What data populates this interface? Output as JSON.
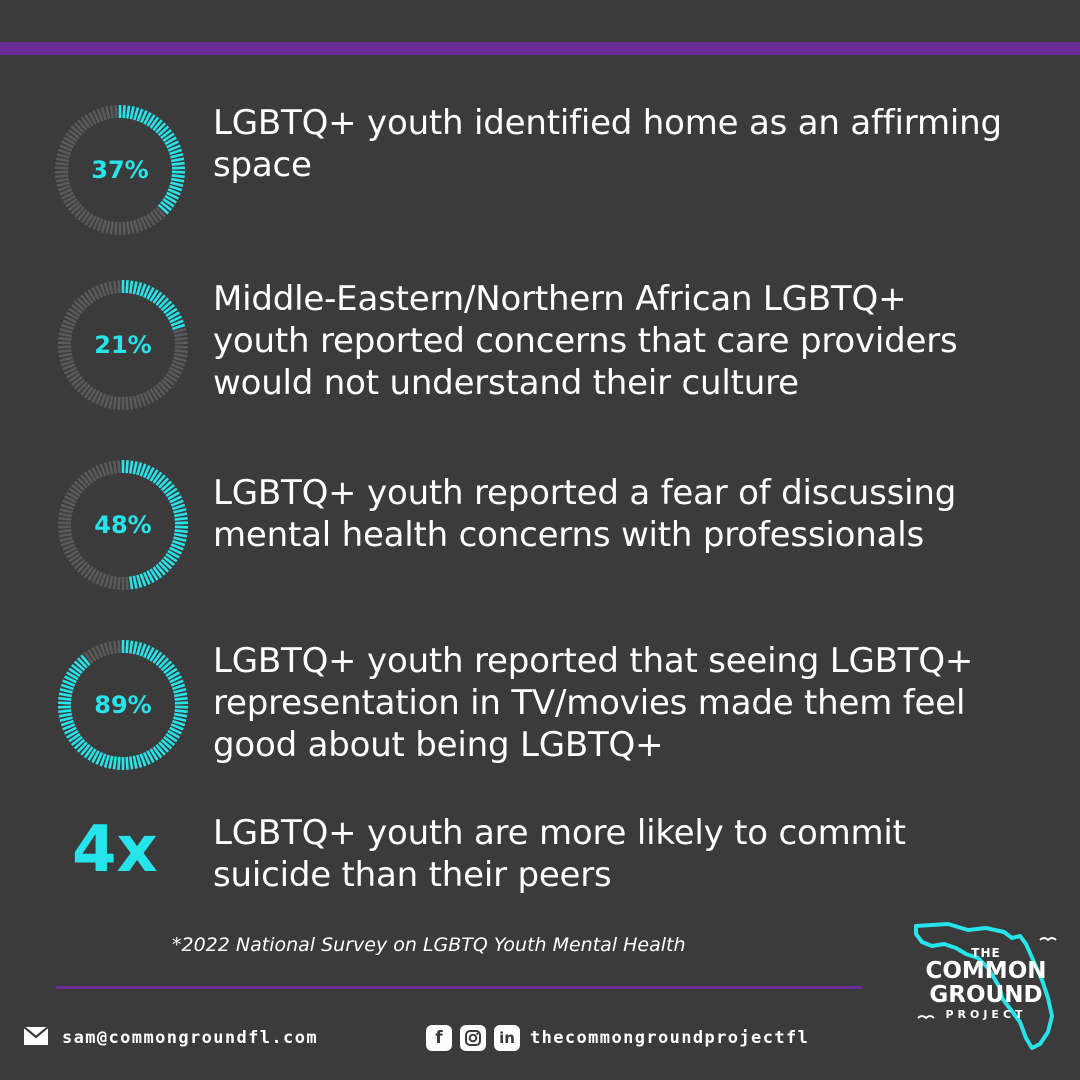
{
  "colors": {
    "background": "#3b3b3c",
    "accent": "#27e4ea",
    "brand_purple": "#6a2c95",
    "track": "#5a5a5c"
  },
  "stats": [
    {
      "value": "37%",
      "fraction": 0.37,
      "text_lines": [
        "LGBTQ+ youth identified home as an affirming",
        "space"
      ]
    },
    {
      "value": "21%",
      "fraction": 0.21,
      "text_lines": [
        "Middle-Eastern/Northern African LGBTQ+",
        "youth reported concerns that care providers",
        "would not understand their culture"
      ]
    },
    {
      "value": "48%",
      "fraction": 0.48,
      "text_lines": [
        "LGBTQ+ youth reported a fear of discussing",
        "mental health concerns with professionals"
      ]
    },
    {
      "value": "89%",
      "fraction": 0.89,
      "text_lines": [
        "LGBTQ+ youth reported that seeing LGBTQ+",
        "representation in TV/movies made them feel",
        "good about being LGBTQ+"
      ]
    }
  ],
  "multiplier_stat": {
    "value": "4x",
    "text_lines": [
      "LGBTQ+ youth are more likely to commit",
      "suicide than their peers"
    ]
  },
  "footnote": "*2022 National Survey on LGBTQ Youth Mental Health",
  "contact": {
    "email": "sam@commongroundfl.com",
    "email_icon": "envelope-icon",
    "social_icons": [
      "facebook-icon",
      "instagram-icon",
      "linkedin-icon"
    ],
    "social_handle": "thecommongroundprojectfl"
  },
  "logo": {
    "line1": "THE",
    "line2": "COMMON",
    "line3": "GROUND",
    "line4": "PROJECT",
    "icon": "florida-outline-icon"
  }
}
